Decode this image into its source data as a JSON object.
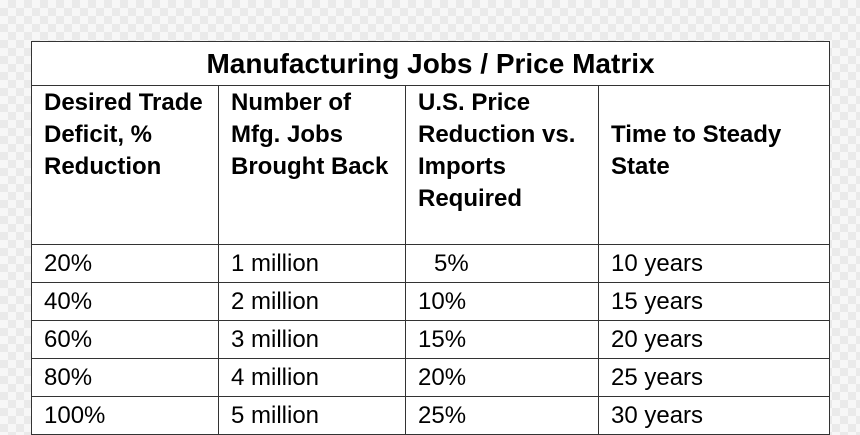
{
  "table": {
    "title": "Manufacturing Jobs / Price Matrix",
    "columns": [
      "Desired Trade Deficit, % Reduction",
      "Number of Mfg. Jobs Brought Back",
      "U.S. Price Reduction vs. Imports Required",
      "Time to Steady State"
    ],
    "rows": [
      [
        "20%",
        "1 million",
        "5%",
        "10 years"
      ],
      [
        "40%",
        "2 million",
        "10%",
        "15 years"
      ],
      [
        "60%",
        "3 million",
        "15%",
        "20 years"
      ],
      [
        "80%",
        "4 million",
        "20%",
        "25 years"
      ],
      [
        "100%",
        "5 million",
        "25%",
        "30 years"
      ]
    ]
  }
}
